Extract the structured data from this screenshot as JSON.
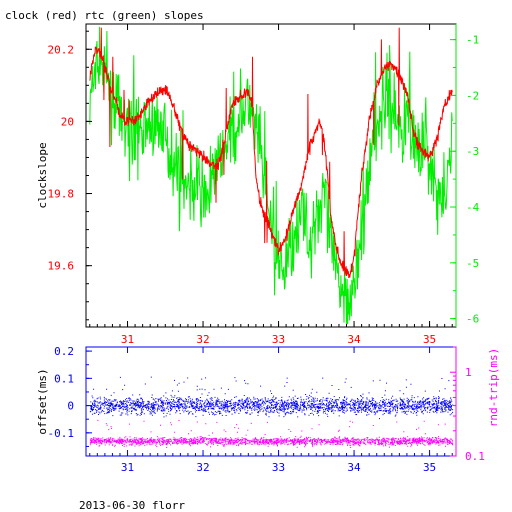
{
  "title": "clock (red) rtc (green) slopes",
  "footer": "2013-06-30 florr",
  "colors": {
    "clock": "#ff0000",
    "rtc": "#00ee00",
    "offset": "#0000ff",
    "rndtrip": "#ff00ff",
    "axis": "#000000"
  },
  "chart_data": [
    {
      "type": "line",
      "ylabel": "clockslope",
      "y2label": "",
      "xlim": [
        30.45,
        35.35
      ],
      "ylim": [
        19.43,
        20.27
      ],
      "y2lim": [
        -6.15,
        -0.72
      ],
      "xticks": [
        "31",
        "32",
        "33",
        "34",
        "35"
      ],
      "xtick_values": [
        31,
        32,
        33,
        34,
        35
      ],
      "yticks": [
        "19.6",
        "19.8",
        "20",
        "20.2"
      ],
      "ytick_values": [
        19.6,
        19.8,
        20.0,
        20.2
      ],
      "y2ticks": [
        "-1",
        "-2",
        "-3",
        "-4",
        "-5",
        "-6"
      ],
      "y2tick_values": [
        -1,
        -2,
        -3,
        -4,
        -5,
        -6
      ],
      "series": [
        {
          "name": "clock",
          "axis": "left",
          "x": [
            30.5,
            30.56,
            30.62,
            30.7,
            30.8,
            30.9,
            31.0,
            31.1,
            31.2,
            31.3,
            31.4,
            31.5,
            31.6,
            31.7,
            31.8,
            31.9,
            32.0,
            32.1,
            32.2,
            32.3,
            32.35,
            32.4,
            32.5,
            32.6,
            32.65,
            32.7,
            32.75,
            32.8,
            32.9,
            33.0,
            33.1,
            33.2,
            33.3,
            33.4,
            33.5,
            33.55,
            33.6,
            33.65,
            33.7,
            33.8,
            33.9,
            33.95,
            34.0,
            34.1,
            34.2,
            34.3,
            34.4,
            34.5,
            34.6,
            34.7,
            34.8,
            34.9,
            35.0,
            35.1,
            35.2,
            35.3
          ],
          "y": [
            20.12,
            20.19,
            20.2,
            20.15,
            20.08,
            20.02,
            20.0,
            20.0,
            20.03,
            20.06,
            20.08,
            20.09,
            20.05,
            19.98,
            19.94,
            19.92,
            19.9,
            19.88,
            19.88,
            19.96,
            20.02,
            20.05,
            20.07,
            20.08,
            20.05,
            19.85,
            19.78,
            19.75,
            19.7,
            19.64,
            19.68,
            19.76,
            19.82,
            19.92,
            19.98,
            20.0,
            19.95,
            19.85,
            19.72,
            19.62,
            19.58,
            19.57,
            19.63,
            19.85,
            20.0,
            20.1,
            20.15,
            20.16,
            20.13,
            20.08,
            19.96,
            19.92,
            19.9,
            19.95,
            20.05,
            20.08
          ]
        },
        {
          "name": "rtc",
          "axis": "right",
          "x": [
            30.5,
            30.6,
            30.7,
            30.8,
            30.9,
            31.0,
            31.1,
            31.2,
            31.3,
            31.4,
            31.5,
            31.6,
            31.7,
            31.8,
            31.9,
            32.0,
            32.1,
            32.2,
            32.3,
            32.4,
            32.5,
            32.6,
            32.7,
            32.8,
            32.9,
            33.0,
            33.1,
            33.2,
            33.3,
            33.4,
            33.5,
            33.6,
            33.7,
            33.8,
            33.9,
            34.0,
            34.1,
            34.2,
            34.3,
            34.4,
            34.5,
            34.6,
            34.7,
            34.8,
            34.9,
            35.0,
            35.1,
            35.2,
            35.3
          ],
          "y": [
            -2.2,
            -1.4,
            -1.5,
            -2.0,
            -2.4,
            -2.6,
            -2.8,
            -2.5,
            -2.6,
            -2.4,
            -2.8,
            -3.2,
            -3.5,
            -3.6,
            -3.6,
            -3.8,
            -3.6,
            -3.2,
            -3.0,
            -2.7,
            -2.3,
            -2.2,
            -2.6,
            -3.4,
            -4.4,
            -5.2,
            -5.0,
            -4.5,
            -4.0,
            -4.6,
            -4.2,
            -3.6,
            -4.8,
            -5.4,
            -5.6,
            -5.5,
            -4.6,
            -3.2,
            -2.6,
            -2.0,
            -2.2,
            -2.6,
            -2.4,
            -2.8,
            -2.9,
            -3.2,
            -3.8,
            -4.0,
            -2.6
          ]
        }
      ]
    },
    {
      "type": "scatter",
      "ylabel": "offset(ms)",
      "y2label": "rnd-trip(ms)",
      "xlim": [
        30.45,
        35.35
      ],
      "ylim": [
        -0.185,
        0.215
      ],
      "y2lim": [
        0.1,
        2.0
      ],
      "xticks": [
        "31",
        "32",
        "33",
        "34",
        "35"
      ],
      "xtick_values": [
        31,
        32,
        33,
        34,
        35
      ],
      "yticks": [
        "0.2",
        "0.1",
        "0",
        "-0.1"
      ],
      "ytick_values": [
        0.2,
        0.1,
        0.0,
        -0.1
      ],
      "y2ticks": [
        "1",
        "0.1"
      ],
      "y2tick_values": [
        1,
        0.1
      ],
      "y2scale": "log",
      "series": [
        {
          "name": "offset",
          "axis": "left",
          "x_range": [
            30.5,
            35.3
          ],
          "center": 0.0,
          "spread": 0.025
        },
        {
          "name": "rnd-trip",
          "axis": "right",
          "x_range": [
            30.5,
            35.3
          ],
          "center": 0.15,
          "spread": 0.015
        }
      ]
    }
  ]
}
